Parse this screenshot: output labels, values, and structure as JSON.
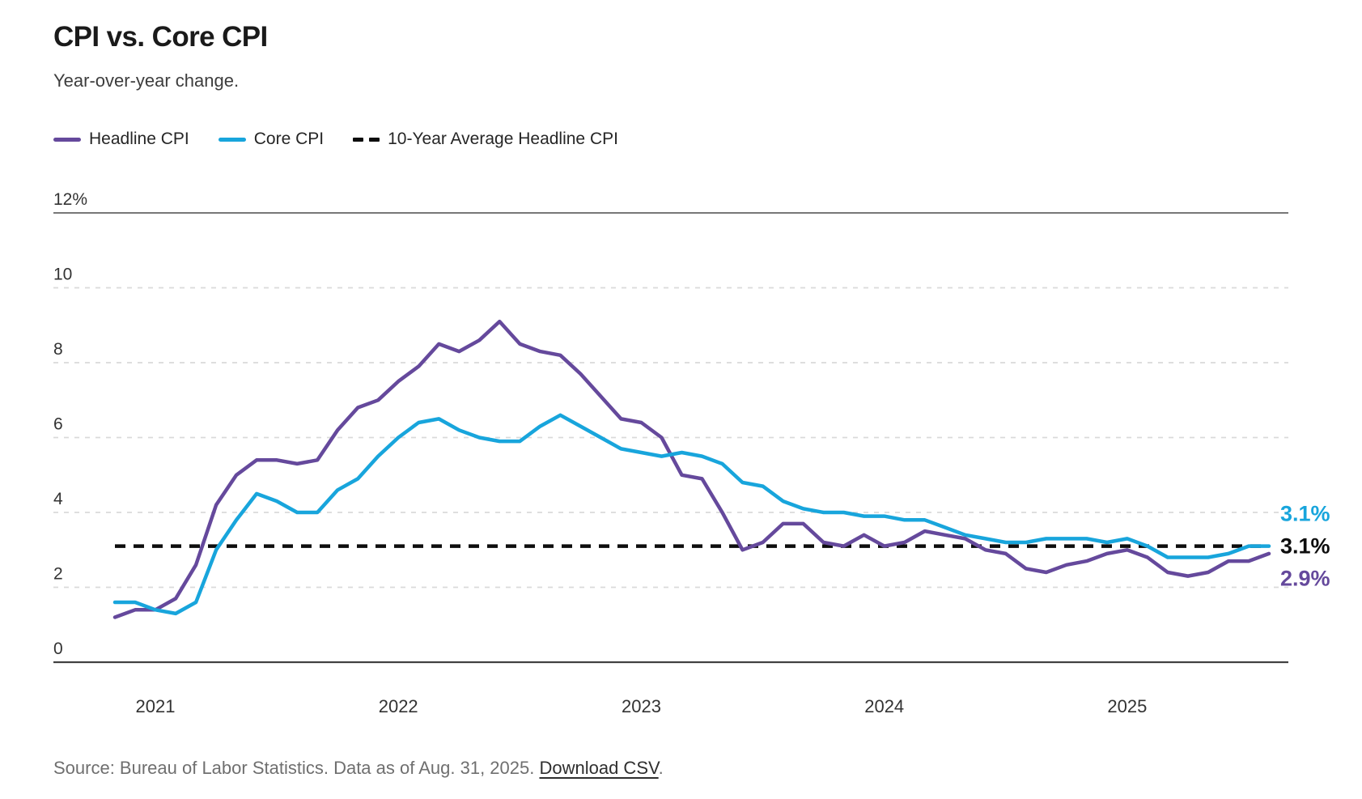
{
  "header": {
    "title": "CPI vs. Core CPI",
    "subtitle": "Year-over-year change."
  },
  "legend": {
    "items": [
      {
        "label": "Headline CPI",
        "color": "#65499c",
        "style": "solid"
      },
      {
        "label": "Core CPI",
        "color": "#18a5dc",
        "style": "solid"
      },
      {
        "label": "10-Year Average Headline CPI",
        "color": "#0d0d0d",
        "style": "dashed"
      }
    ]
  },
  "chart_data": {
    "type": "line",
    "title": "CPI vs. Core CPI",
    "subtitle": "Year-over-year change.",
    "xlabel": "",
    "ylabel": "",
    "ylim": [
      0,
      12
    ],
    "grid": "horizontal-dashed",
    "legend_position": "top-left",
    "x": [
      "2020-11",
      "2020-12",
      "2021-01",
      "2021-02",
      "2021-03",
      "2021-04",
      "2021-05",
      "2021-06",
      "2021-07",
      "2021-08",
      "2021-09",
      "2021-10",
      "2021-11",
      "2021-12",
      "2022-01",
      "2022-02",
      "2022-03",
      "2022-04",
      "2022-05",
      "2022-06",
      "2022-07",
      "2022-08",
      "2022-09",
      "2022-10",
      "2022-11",
      "2022-12",
      "2023-01",
      "2023-02",
      "2023-03",
      "2023-04",
      "2023-05",
      "2023-06",
      "2023-07",
      "2023-08",
      "2023-09",
      "2023-10",
      "2023-11",
      "2023-12",
      "2024-01",
      "2024-02",
      "2024-03",
      "2024-04",
      "2024-05",
      "2024-06",
      "2024-07",
      "2024-08",
      "2024-09",
      "2024-10",
      "2024-11",
      "2024-12",
      "2025-01",
      "2025-02",
      "2025-03",
      "2025-04",
      "2025-05",
      "2025-06",
      "2025-07",
      "2025-08"
    ],
    "series": [
      {
        "name": "Headline CPI",
        "color": "#65499c",
        "values": [
          1.2,
          1.4,
          1.4,
          1.7,
          2.6,
          4.2,
          5.0,
          5.4,
          5.4,
          5.3,
          5.4,
          6.2,
          6.8,
          7.0,
          7.5,
          7.9,
          8.5,
          8.3,
          8.6,
          9.1,
          8.5,
          8.3,
          8.2,
          7.7,
          7.1,
          6.5,
          6.4,
          6.0,
          5.0,
          4.9,
          4.0,
          3.0,
          3.2,
          3.7,
          3.7,
          3.2,
          3.1,
          3.4,
          3.1,
          3.2,
          3.5,
          3.4,
          3.3,
          3.0,
          2.9,
          2.5,
          2.4,
          2.6,
          2.7,
          2.9,
          3.0,
          2.8,
          2.4,
          2.3,
          2.4,
          2.7,
          2.7,
          2.9
        ]
      },
      {
        "name": "Core CPI",
        "color": "#18a5dc",
        "values": [
          1.6,
          1.6,
          1.4,
          1.3,
          1.6,
          3.0,
          3.8,
          4.5,
          4.3,
          4.0,
          4.0,
          4.6,
          4.9,
          5.5,
          6.0,
          6.4,
          6.5,
          6.2,
          6.0,
          5.9,
          5.9,
          6.3,
          6.6,
          6.3,
          6.0,
          5.7,
          5.6,
          5.5,
          5.6,
          5.5,
          5.3,
          4.8,
          4.7,
          4.3,
          4.1,
          4.0,
          4.0,
          3.9,
          3.9,
          3.8,
          3.8,
          3.6,
          3.4,
          3.3,
          3.2,
          3.2,
          3.3,
          3.3,
          3.3,
          3.2,
          3.3,
          3.1,
          2.8,
          2.8,
          2.8,
          2.9,
          3.1,
          3.1
        ]
      }
    ],
    "average_line": {
      "name": "10-Year Average Headline CPI",
      "value": 3.1,
      "color": "#0d0d0d",
      "style": "dashed"
    },
    "yticks": [
      {
        "v": 12,
        "label": "12%"
      },
      {
        "v": 10,
        "label": "10"
      },
      {
        "v": 8,
        "label": "8"
      },
      {
        "v": 6,
        "label": "6"
      },
      {
        "v": 4,
        "label": "4"
      },
      {
        "v": 2,
        "label": "2"
      },
      {
        "v": 0,
        "label": "0"
      }
    ],
    "xticks": [
      {
        "month": "2021-01",
        "label": "2021"
      },
      {
        "month": "2022-01",
        "label": "2022"
      },
      {
        "month": "2023-01",
        "label": "2023"
      },
      {
        "month": "2024-01",
        "label": "2024"
      },
      {
        "month": "2025-01",
        "label": "2025"
      }
    ],
    "end_labels": [
      {
        "text": "3.1%",
        "series": "Core CPI",
        "color": "#18a5dc"
      },
      {
        "text": "3.1%",
        "series": "10-Year Average Headline CPI",
        "color": "#0d0d0d"
      },
      {
        "text": "2.9%",
        "series": "Headline CPI",
        "color": "#65499c"
      }
    ]
  },
  "footer": {
    "source_text": "Source: Bureau of Labor Statistics. Data as of Aug. 31, 2025. ",
    "link_label": "Download CSV",
    "link_suffix": "."
  }
}
